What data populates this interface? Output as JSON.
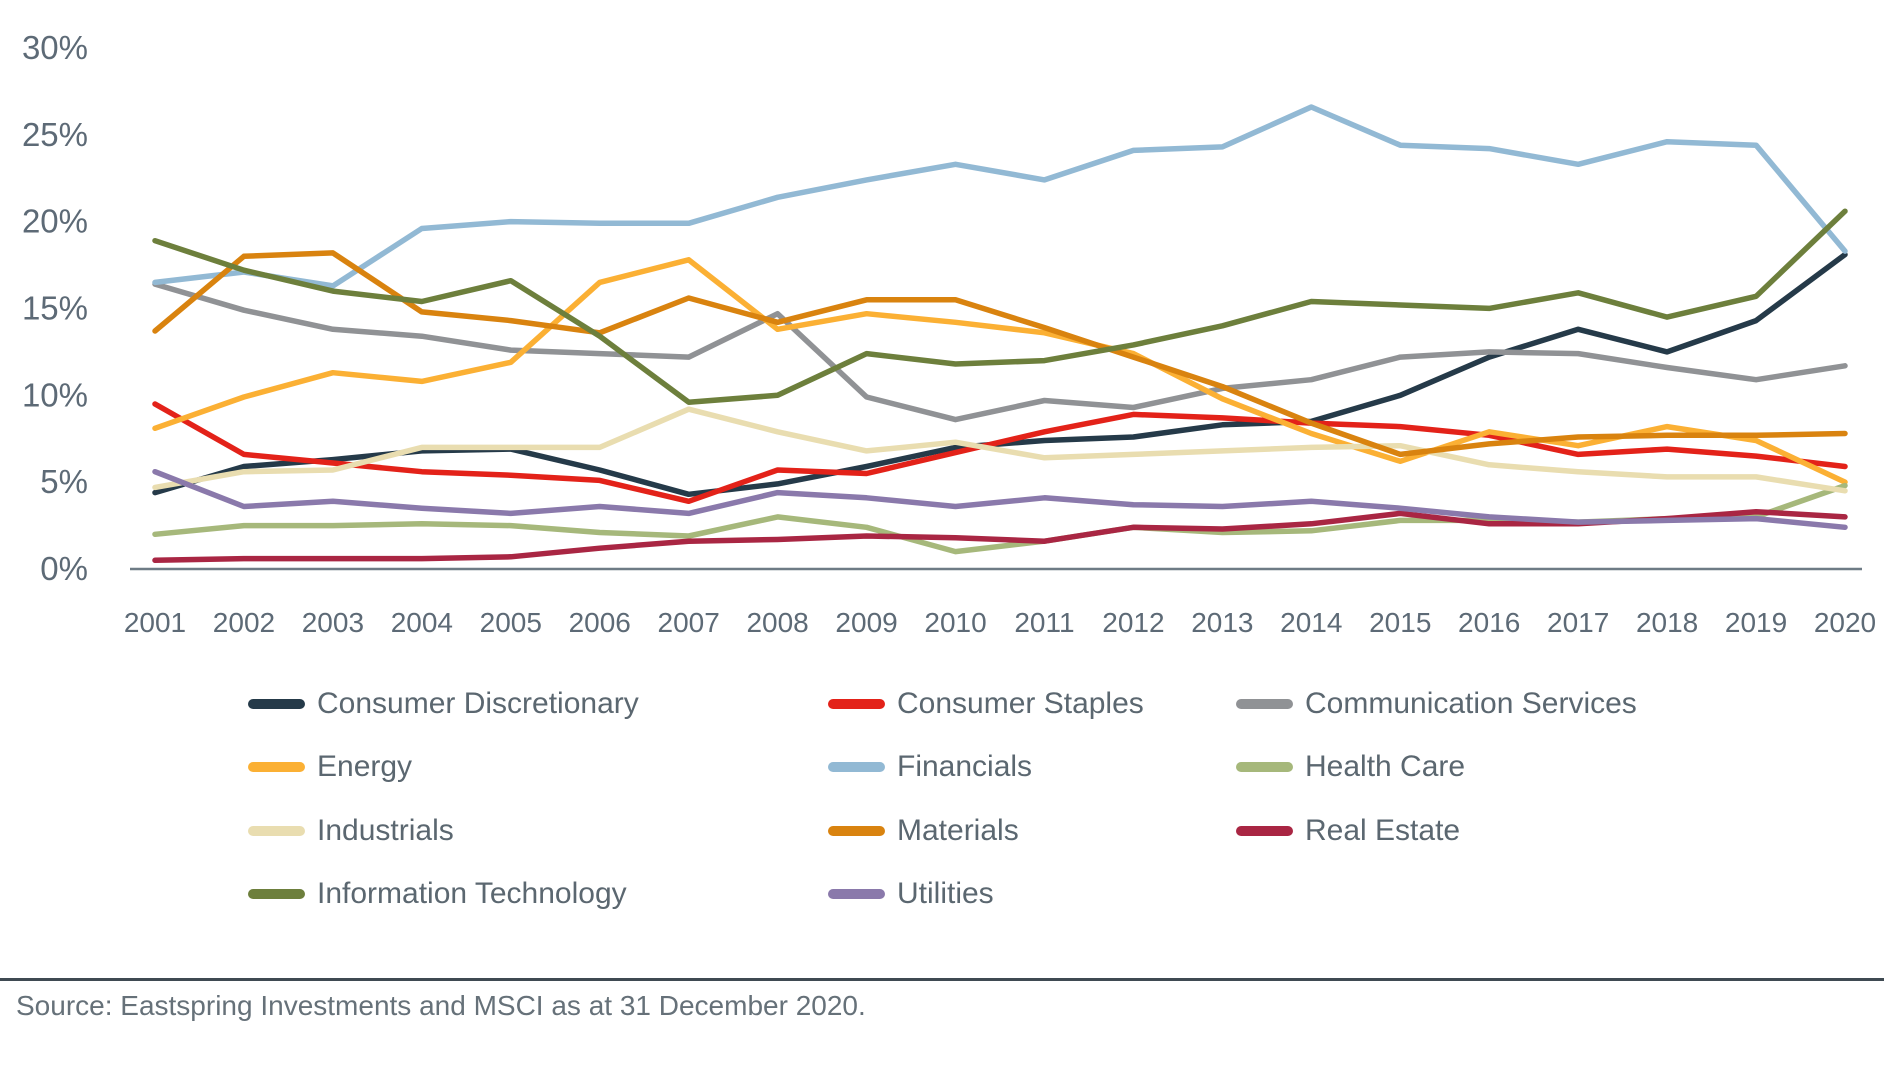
{
  "chart_data": {
    "type": "line",
    "title": "",
    "xlabel": "",
    "ylabel": "",
    "x": [
      2001,
      2002,
      2003,
      2004,
      2005,
      2006,
      2007,
      2008,
      2009,
      2010,
      2011,
      2012,
      2013,
      2014,
      2015,
      2016,
      2017,
      2018,
      2019,
      2020
    ],
    "ylim": [
      0,
      30
    ],
    "grid": false,
    "legend_position": "bottom",
    "y_ticks": [
      {
        "label": "0%",
        "value": 0
      },
      {
        "label": "5%",
        "value": 5
      },
      {
        "label": "10%",
        "value": 10
      },
      {
        "label": "15%",
        "value": 15
      },
      {
        "label": "20%",
        "value": 20
      },
      {
        "label": "25%",
        "value": 25
      },
      {
        "label": "30%",
        "value": 30
      }
    ],
    "series": [
      {
        "name": "Consumer Discretionary",
        "color": "#253a49",
        "values": [
          4.4,
          5.9,
          6.3,
          6.8,
          6.9,
          5.7,
          4.3,
          4.9,
          5.9,
          7.0,
          7.4,
          7.6,
          8.3,
          8.5,
          10.0,
          12.2,
          13.8,
          12.5,
          14.3,
          18.1
        ]
      },
      {
        "name": "Consumer Staples",
        "color": "#e32219",
        "values": [
          9.5,
          6.6,
          6.1,
          5.6,
          5.4,
          5.1,
          3.9,
          5.7,
          5.5,
          6.7,
          7.9,
          8.9,
          8.7,
          8.4,
          8.2,
          7.7,
          6.6,
          6.9,
          6.5,
          5.9
        ]
      },
      {
        "name": "Communication Services",
        "color": "#909295",
        "values": [
          16.4,
          14.9,
          13.8,
          13.4,
          12.6,
          12.4,
          12.2,
          14.7,
          9.9,
          8.6,
          9.7,
          9.3,
          10.4,
          10.9,
          12.2,
          12.5,
          12.4,
          11.6,
          10.9,
          11.7
        ]
      },
      {
        "name": "Energy",
        "color": "#fbb034",
        "values": [
          8.1,
          9.9,
          11.3,
          10.8,
          11.9,
          16.5,
          17.8,
          13.8,
          14.7,
          14.2,
          13.6,
          12.4,
          9.8,
          7.8,
          6.2,
          7.9,
          7.1,
          8.2,
          7.4,
          5.0
        ]
      },
      {
        "name": "Financials",
        "color": "#92b9d4",
        "values": [
          16.5,
          17.1,
          16.3,
          19.6,
          20.0,
          19.9,
          19.9,
          21.4,
          22.4,
          23.3,
          22.4,
          24.1,
          24.3,
          26.6,
          24.4,
          24.2,
          23.3,
          24.6,
          24.4,
          18.3
        ]
      },
      {
        "name": "Health Care",
        "color": "#a6b87b",
        "values": [
          2.0,
          2.5,
          2.5,
          2.6,
          2.5,
          2.1,
          1.9,
          3.0,
          2.4,
          1.0,
          1.6,
          2.4,
          2.1,
          2.2,
          2.8,
          2.8,
          2.7,
          2.9,
          3.0,
          4.8
        ]
      },
      {
        "name": "Industrials",
        "color": "#e9ddb0",
        "values": [
          4.7,
          5.6,
          5.7,
          7.0,
          7.0,
          7.0,
          9.2,
          7.9,
          6.8,
          7.3,
          6.4,
          6.6,
          6.8,
          7.0,
          7.1,
          6.0,
          5.6,
          5.3,
          5.3,
          4.5
        ]
      },
      {
        "name": "Materials",
        "color": "#d9830f",
        "values": [
          13.7,
          18.0,
          18.2,
          14.8,
          14.3,
          13.6,
          15.6,
          14.2,
          15.5,
          15.5,
          13.9,
          12.2,
          10.5,
          8.4,
          6.6,
          7.2,
          7.6,
          7.7,
          7.7,
          7.8
        ]
      },
      {
        "name": "Real Estate",
        "color": "#a92643",
        "values": [
          0.5,
          0.6,
          0.6,
          0.6,
          0.7,
          1.2,
          1.6,
          1.7,
          1.9,
          1.8,
          1.6,
          2.4,
          2.3,
          2.6,
          3.2,
          2.6,
          2.6,
          2.9,
          3.3,
          3.0
        ]
      },
      {
        "name": "Information Technology",
        "color": "#6d7f3c",
        "values": [
          18.9,
          17.2,
          16.0,
          15.4,
          16.6,
          13.4,
          9.6,
          10.0,
          12.4,
          11.8,
          12.0,
          12.9,
          14.0,
          15.4,
          15.2,
          15.0,
          15.9,
          14.5,
          15.7,
          20.6
        ]
      },
      {
        "name": "Utilities",
        "color": "#8a79ab",
        "values": [
          5.6,
          3.6,
          3.9,
          3.5,
          3.2,
          3.6,
          3.2,
          4.4,
          4.1,
          3.6,
          4.1,
          3.7,
          3.6,
          3.9,
          3.5,
          3.0,
          2.7,
          2.8,
          2.9,
          2.4
        ]
      }
    ]
  },
  "footer": {
    "source": "Source: Eastspring Investments and MSCI as at 31 December 2020."
  },
  "style": {
    "axis_color": "#6e7b85",
    "text_color": "#5d6a76"
  }
}
